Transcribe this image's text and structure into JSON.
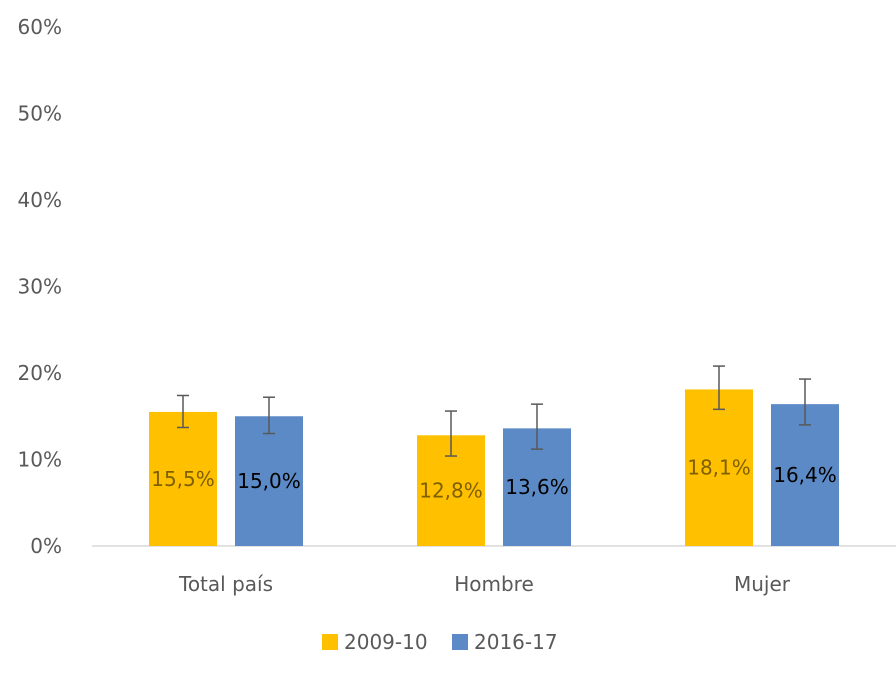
{
  "chart_data": {
    "type": "bar",
    "categories": [
      "Total país",
      "Hombre",
      "Mujer"
    ],
    "series": [
      {
        "name": "2009-10",
        "values": [
          15.5,
          12.8,
          18.1
        ],
        "error_low": [
          13.7,
          10.4,
          15.8
        ],
        "error_high": [
          17.4,
          15.6,
          20.8
        ],
        "labels": [
          "15,5%",
          "12,8%",
          "18,1%"
        ],
        "color": "#FFC000",
        "label_color": "#7F6000"
      },
      {
        "name": "2016-17",
        "values": [
          15.0,
          13.6,
          16.4
        ],
        "error_low": [
          13.0,
          11.2,
          14.0
        ],
        "error_high": [
          17.2,
          16.4,
          19.3
        ],
        "labels": [
          "15,0%",
          "13,6%",
          "16,4%"
        ],
        "color": "#5B8AC6",
        "label_color": "#000000"
      }
    ],
    "y_ticks": [
      "0%",
      "10%",
      "20%",
      "30%",
      "40%",
      "50%",
      "60%"
    ],
    "ylim": [
      0,
      60
    ],
    "grid": false,
    "legend_position": "bottom",
    "axis_color": "#D9D9D9",
    "error_bar_color": "#595959"
  }
}
